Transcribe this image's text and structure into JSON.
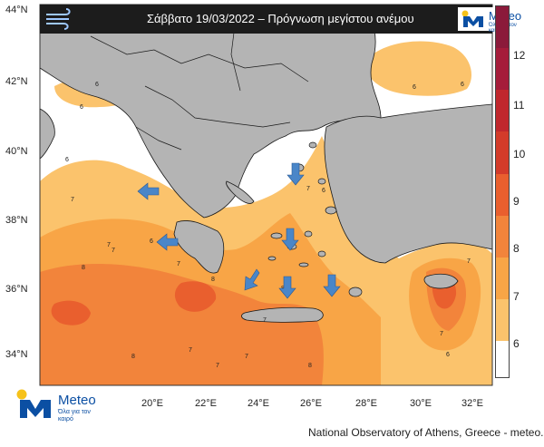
{
  "header": {
    "title": "Σάββατο 19/03/2022 – Πρόγνωση μεγίστου ανέμου",
    "logo_text": "Meteo",
    "logo_tagline": "Όλα για τον καιρό"
  },
  "footer": {
    "logo_text": "Meteo",
    "logo_tagline": "Όλα για τον καιρό",
    "credit": "National Observatory of Athens, Greece - meteo.gr"
  },
  "map": {
    "lat_labels": [
      "44°N",
      "42°N",
      "40°N",
      "38°N",
      "36°N",
      "34°N"
    ],
    "lon_labels": [
      "20°E",
      "22°E",
      "24°E",
      "26°E",
      "28°E",
      "30°E",
      "32°E"
    ],
    "contour_labels": [
      "6",
      "6",
      "6",
      "6",
      "6",
      "7",
      "7",
      "6",
      "7",
      "7",
      "8",
      "8",
      "8",
      "7",
      "7",
      "8",
      "7",
      "8",
      "6",
      "7",
      "7",
      "6",
      "7",
      "7"
    ],
    "wind_arrows": [
      {
        "direction": "west"
      },
      {
        "direction": "west"
      },
      {
        "direction": "south"
      },
      {
        "direction": "south"
      },
      {
        "direction": "south-west"
      },
      {
        "direction": "south"
      },
      {
        "direction": "south"
      }
    ],
    "colors": {
      "land": "#b4b4b4",
      "sea_calm": "#ffffff",
      "level_6": "#fbc36c",
      "level_7": "#f8a546",
      "level_8": "#f2843b",
      "level_9": "#e95f2e",
      "level_10": "#d33b2a",
      "arrow": "#4a86c8",
      "brand_blue": "#0b4fa3",
      "brand_yellow": "#f6c21a"
    }
  },
  "legend": {
    "labels": [
      "12",
      "11",
      "10",
      "9",
      "8",
      "7",
      "6"
    ],
    "colors": [
      "#fbc36c",
      "#f8a546",
      "#f2843b",
      "#e95f2e",
      "#d33b2a",
      "#c0272d",
      "#a51c3a",
      "#8b1a3a"
    ]
  }
}
